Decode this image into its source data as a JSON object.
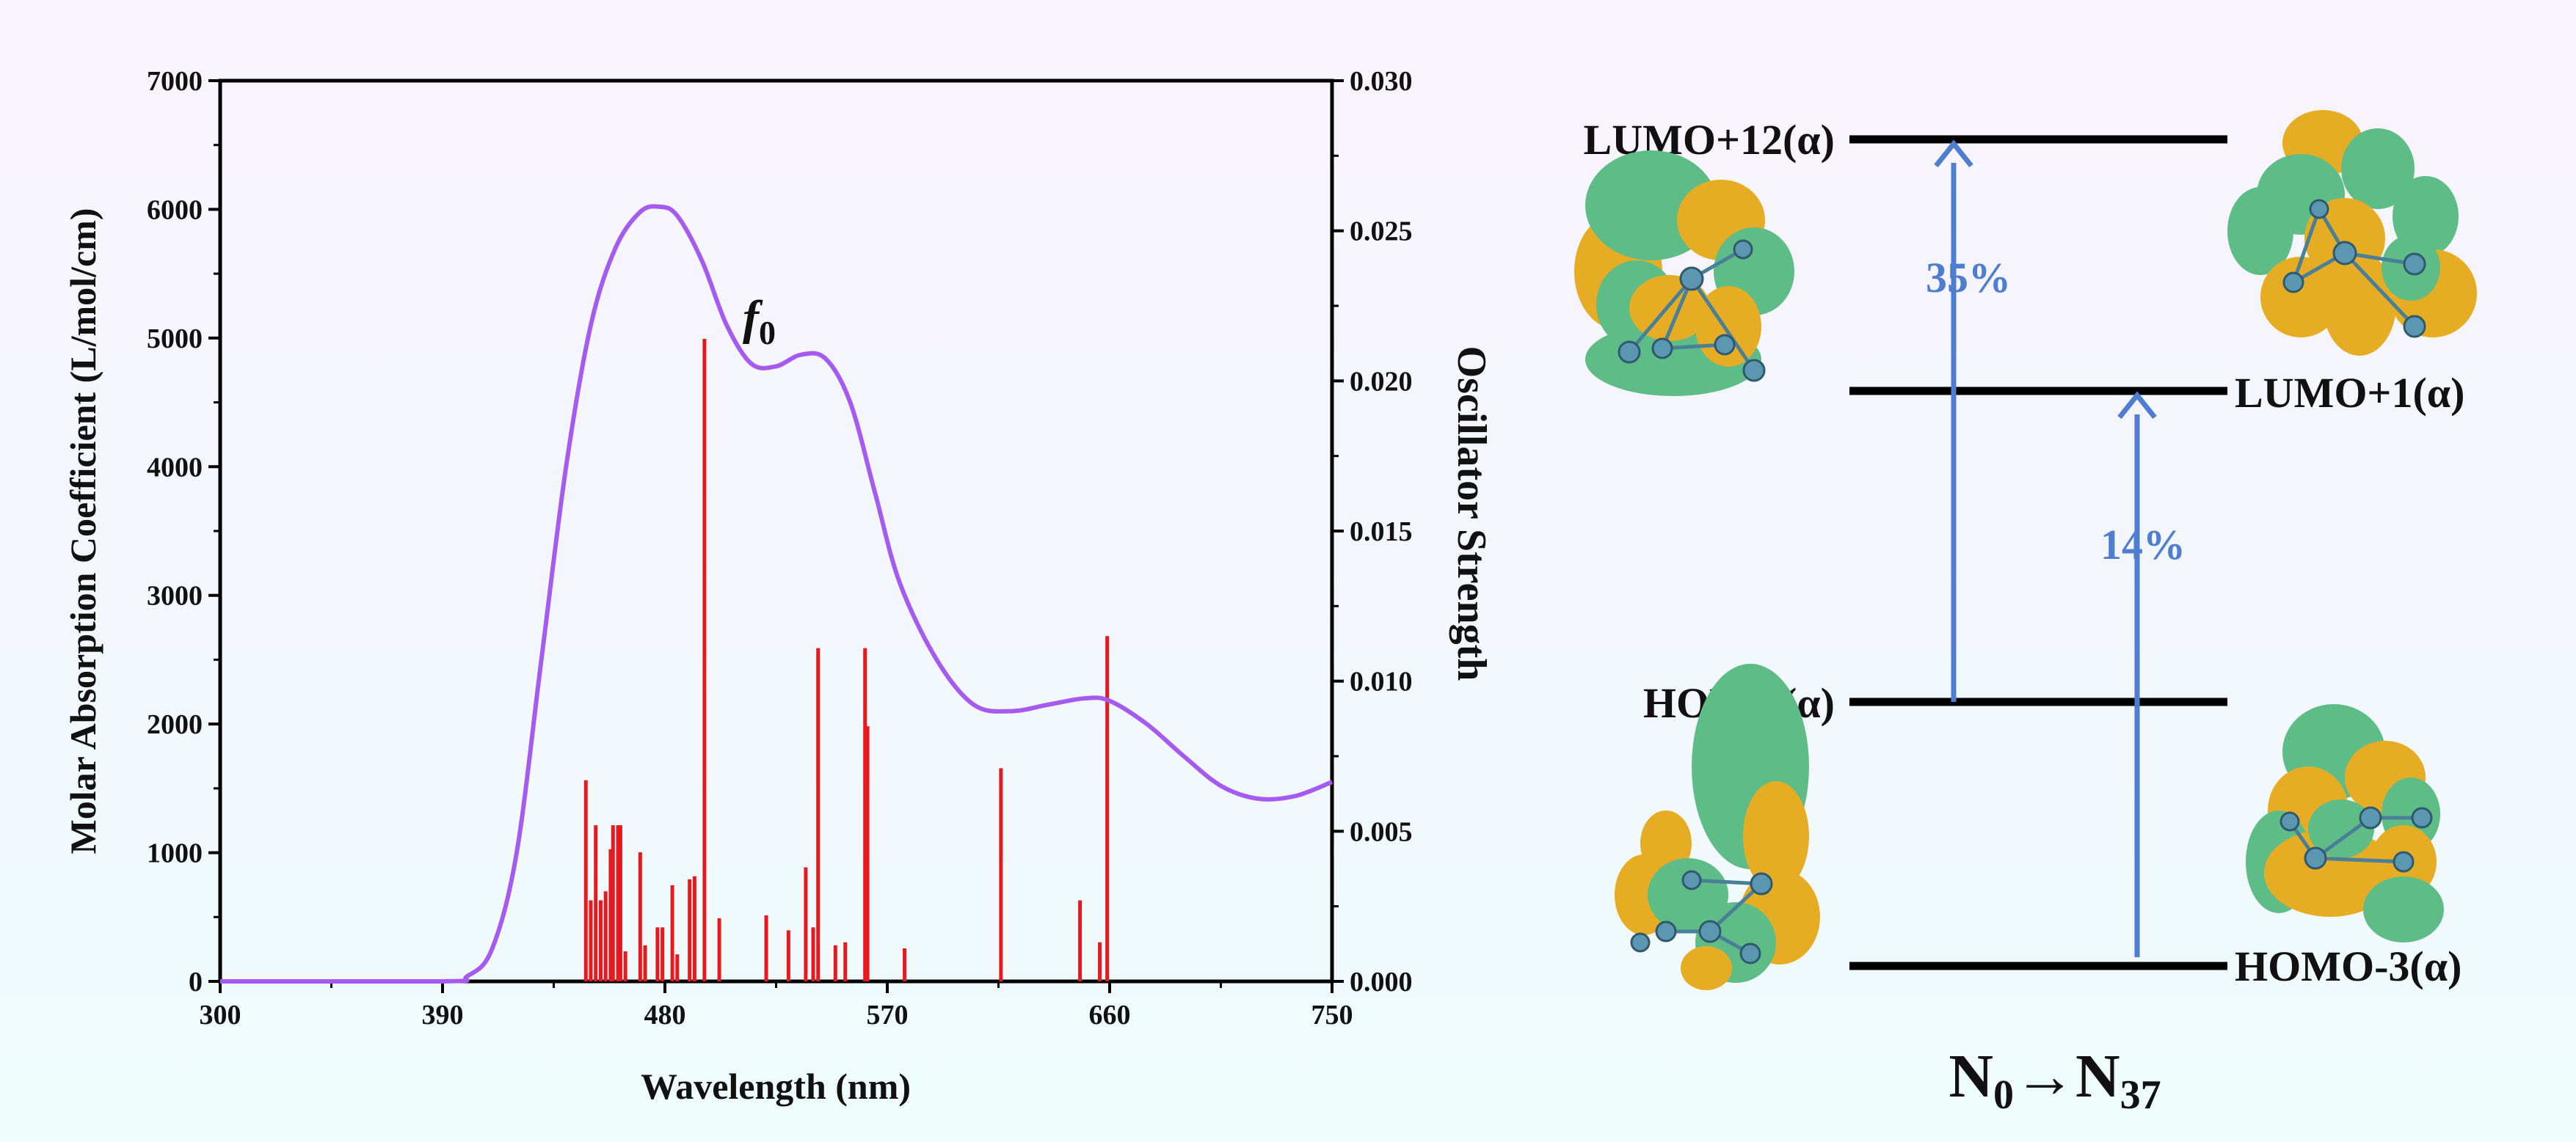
{
  "chart_data": {
    "type": "line",
    "xlabel": "Wavelength (nm)",
    "ylabel_left": "Molar Absorption Coefficient (L/mol/cm)",
    "ylabel_right": "Oscillator Strength",
    "xlim": [
      300,
      750
    ],
    "ylim_left": [
      0,
      7000
    ],
    "ylim_right": [
      0,
      0.03
    ],
    "x_ticks": [
      "300",
      "390",
      "480",
      "570",
      "660",
      "750"
    ],
    "y_ticks_left": [
      "0",
      "1000",
      "2000",
      "3000",
      "4000",
      "5000",
      "6000",
      "7000"
    ],
    "y_ticks_right": [
      "0.000",
      "0.005",
      "0.010",
      "0.015",
      "0.020",
      "0.025",
      "0.030"
    ],
    "curve_label": {
      "main": "f",
      "sub": "0"
    },
    "series": [
      {
        "color": "#a55bf0",
        "axis": "left",
        "type": "line",
        "x": [
          300,
          390,
          400,
          410,
          420,
          430,
          440,
          450,
          460,
          470,
          478,
          485,
          495,
          505,
          515,
          525,
          535,
          545,
          555,
          565,
          575,
          590,
          605,
          620,
          635,
          650,
          660,
          675,
          690,
          705,
          720,
          735,
          750
        ],
        "y": [
          0,
          0,
          40,
          250,
          1000,
          2500,
          4000,
          5100,
          5700,
          5980,
          6020,
          5950,
          5600,
          5100,
          4800,
          4780,
          4870,
          4840,
          4500,
          3800,
          3100,
          2500,
          2150,
          2100,
          2150,
          2200,
          2180,
          2000,
          1750,
          1520,
          1420,
          1440,
          1550
        ]
      },
      {
        "color": "#e8191e",
        "axis": "right",
        "type": "stick",
        "x": [
          448,
          450,
          452,
          454,
          456,
          458,
          459,
          461,
          462,
          464,
          470,
          472,
          477,
          479,
          483,
          485,
          490,
          492,
          496,
          502,
          521,
          530,
          537,
          540,
          542,
          549,
          553,
          561,
          562,
          577,
          616,
          648,
          656,
          659
        ],
        "y": [
          0.0067,
          0.0027,
          0.0052,
          0.0027,
          0.003,
          0.0044,
          0.0052,
          0.0052,
          0.0052,
          0.001,
          0.0043,
          0.0012,
          0.0018,
          0.0018,
          0.0032,
          0.0009,
          0.0034,
          0.0035,
          0.0214,
          0.0021,
          0.0022,
          0.0017,
          0.0038,
          0.0018,
          0.0111,
          0.0012,
          0.0013,
          0.0111,
          0.0085,
          0.0011,
          0.0071,
          0.0027,
          0.0013,
          0.0115
        ]
      }
    ]
  },
  "diagram": {
    "levels": [
      {
        "label": "LUMO+12(α)",
        "side": "left"
      },
      {
        "label": "LUMO+1(α)",
        "side": "right"
      },
      {
        "label": "HOMO(α)",
        "side": "left"
      },
      {
        "label": "HOMO-3(α)",
        "side": "right"
      }
    ],
    "transitions": [
      {
        "from": "HOMO(α)",
        "to": "LUMO+12(α)",
        "percent": "35%"
      },
      {
        "from": "HOMO-3(α)",
        "to": "LUMO+1(α)",
        "percent": "14%"
      }
    ],
    "caption": {
      "main": "N",
      "sub1": "0",
      "arrow": "→",
      "main2": "N",
      "sub2": "37"
    },
    "colors": {
      "level": "#000000",
      "arrow": "#4f7ed0",
      "orbital_green": "#5ebd86",
      "orbital_yellow": "#e6ad24",
      "atom": "#5b97b0"
    }
  }
}
